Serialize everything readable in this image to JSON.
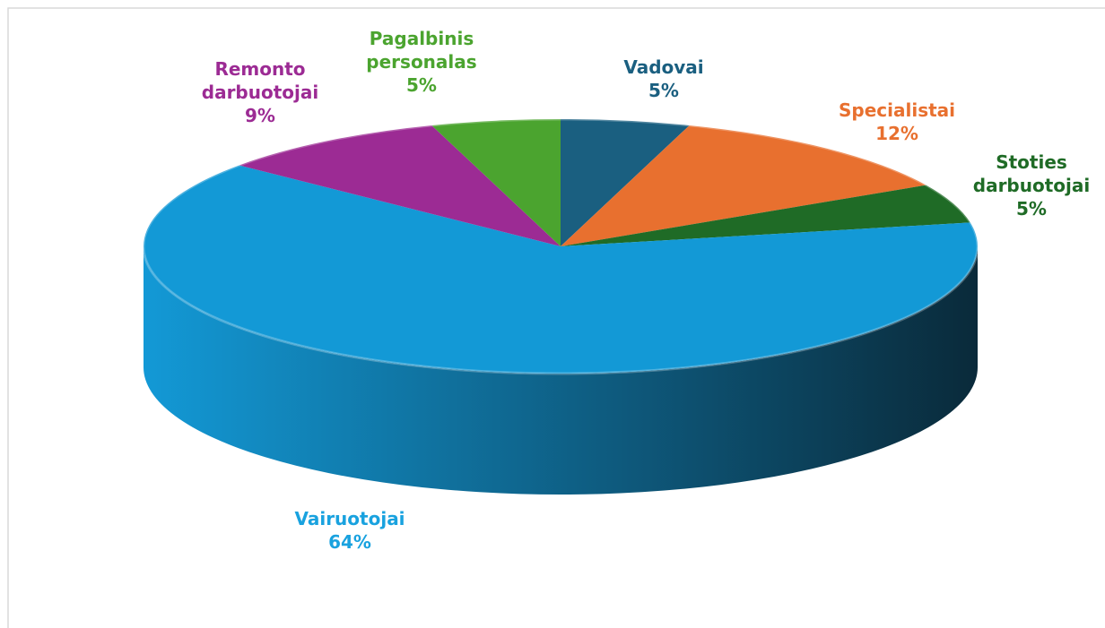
{
  "chart_data": {
    "type": "pie3d",
    "categories": [
      "Vadovai",
      "Specialistai",
      "Stoties darbuotojai",
      "Vairuotojai",
      "Remonto darbuotojai",
      "Pagalbinis personalas"
    ],
    "values": [
      5,
      12,
      5,
      64,
      9,
      5
    ],
    "value_labels": [
      "5%",
      "12%",
      "5%",
      "64%",
      "9%",
      "5%"
    ],
    "colors": [
      "#1a5f80",
      "#e8702f",
      "#1f6b26",
      "#1399d6",
      "#9c2b94",
      "#4ba42f"
    ],
    "label_colors": [
      "#1a5f80",
      "#e8702f",
      "#1f6b26",
      "#19a2df",
      "#9c2b94",
      "#4ba42f"
    ]
  }
}
